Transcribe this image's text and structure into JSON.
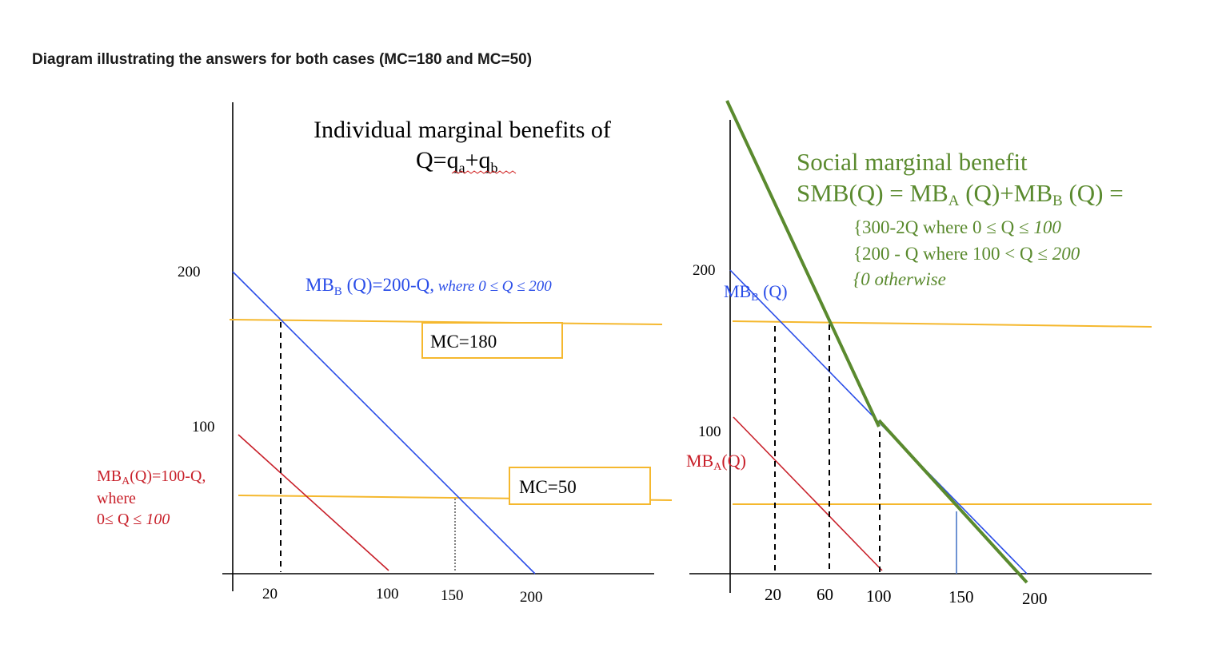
{
  "heading": "Diagram illustrating the answers for both cases (MC=180 and MC=50)",
  "colors": {
    "mb_b": "#2a4de8",
    "mb_a": "#c8202a",
    "mc": "#f5b82e",
    "smb": "#5a8a2e",
    "axis": "#000000"
  },
  "left": {
    "title_line1": "Individual marginal benefits of",
    "title_q": "Q=q",
    "title_plus": "+q",
    "sub_a": "a",
    "sub_b": "b",
    "y_ticks": [
      "200",
      "100"
    ],
    "x_ticks": [
      "20",
      "100",
      "150",
      "200"
    ],
    "mb_b_main": "MB",
    "mb_b_sub": "B",
    "mb_b_rest": " (Q)=200-Q,",
    "mb_b_domain": " where 0 ≤ Q ≤ 200",
    "mb_a_main": "MB",
    "mb_a_sub": "A",
    "mb_a_rest": "(Q)=100-Q,",
    "mb_a_where": "where",
    "mb_a_domain_a": "0≤ Q ≤ ",
    "mb_a_domain_b": "100",
    "mc_high": "MC=180",
    "mc_low": "MC=50"
  },
  "right": {
    "y_ticks": [
      "200",
      "100"
    ],
    "x_ticks": [
      "20",
      "60",
      "100",
      "150",
      "200"
    ],
    "smb_title": "Social marginal benefit",
    "smb_eq_a": "SMB(Q) = MB",
    "smb_sub_a": "A",
    "smb_eq_b": " (Q)+MB",
    "smb_sub_b": "B",
    "smb_eq_c": " (Q) =",
    "case1_a": "{300-2Q where 0 ≤  Q ≤ ",
    "case1_b": "100",
    "case2_a": "{200 - Q where 100 < Q ≤ ",
    "case2_b": "200",
    "case3": "{0 otherwise",
    "mb_b_main": "MB",
    "mb_b_sub": "B",
    "mb_b_rest": " (Q)",
    "mb_a_main": "MB",
    "mb_a_sub": "A",
    "mb_a_rest": "(Q)"
  }
}
